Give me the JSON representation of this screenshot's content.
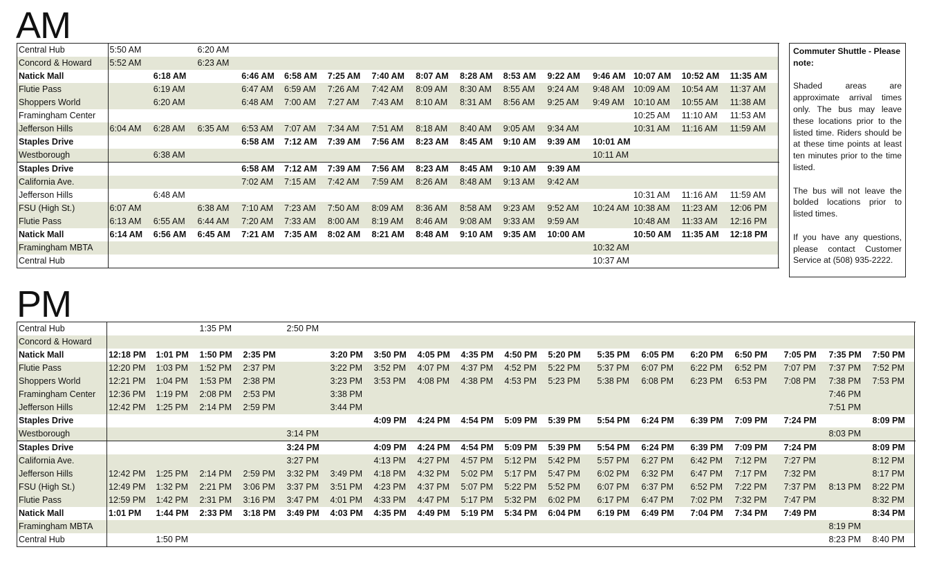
{
  "am": {
    "title": "AM",
    "rows": [
      {
        "stop": "Central Hub",
        "style": "plain",
        "times": [
          "5:50 AM",
          "",
          "6:20 AM",
          "",
          "",
          "",
          "",
          "",
          "",
          "",
          "",
          "",
          "",
          "",
          "",
          ""
        ]
      },
      {
        "stop": "Concord & Howard",
        "style": "shaded",
        "times": [
          "5:52 AM",
          "",
          "6:23 AM",
          "",
          "",
          "",
          "",
          "",
          "",
          "",
          "",
          "",
          "",
          "",
          "",
          ""
        ]
      },
      {
        "stop": "Natick Mall",
        "style": "bold",
        "times": [
          "",
          "6:18 AM",
          "",
          "6:46 AM",
          "6:58 AM",
          "7:25 AM",
          "7:40 AM",
          "8:07 AM",
          "8:28 AM",
          "8:53 AM",
          "9:22 AM",
          "9:46 AM",
          "10:07 AM",
          "10:52 AM",
          "11:35 AM",
          ""
        ]
      },
      {
        "stop": "Flutie Pass",
        "style": "shaded",
        "times": [
          "",
          "6:19 AM",
          "",
          "6:47 AM",
          "6:59 AM",
          "7:26 AM",
          "7:42 AM",
          "8:09 AM",
          "8:30 AM",
          "8:55 AM",
          "9:24 AM",
          "9:48 AM",
          "10:09 AM",
          "10:54 AM",
          "11:37 AM",
          ""
        ]
      },
      {
        "stop": "Shoppers World",
        "style": "shaded",
        "times": [
          "",
          "6:20 AM",
          "",
          "6:48 AM",
          "7:00 AM",
          "7:27 AM",
          "7:43 AM",
          "8:10 AM",
          "8:31 AM",
          "8:56 AM",
          "9:25 AM",
          "9:49 AM",
          "10:10 AM",
          "10:55 AM",
          "11:38 AM",
          ""
        ]
      },
      {
        "stop": "Framingham Center",
        "style": "plain",
        "times": [
          "",
          "",
          "",
          "",
          "",
          "",
          "",
          "",
          "",
          "",
          "",
          "",
          "10:25 AM",
          "11:10 AM",
          "11:53 AM",
          ""
        ]
      },
      {
        "stop": "Jefferson Hills",
        "style": "shaded",
        "times": [
          "6:04 AM",
          "6:28 AM",
          "6:35 AM",
          "6:53 AM",
          "7:07 AM",
          "7:34 AM",
          "7:51 AM",
          "8:18 AM",
          "8:40 AM",
          "9:05 AM",
          "9:34 AM",
          "",
          "10:31 AM",
          "11:16 AM",
          "11:59 AM",
          ""
        ]
      },
      {
        "stop": "Staples Drive",
        "style": "bold",
        "times": [
          "",
          "",
          "",
          "6:58 AM",
          "7:12 AM",
          "7:39 AM",
          "7:56 AM",
          "8:23 AM",
          "8:45 AM",
          "9:10 AM",
          "9:39 AM",
          "10:01 AM",
          "",
          "",
          "",
          ""
        ]
      },
      {
        "stop": "Westborough",
        "style": "shaded",
        "times": [
          "",
          "6:38 AM",
          "",
          "",
          "",
          "",
          "",
          "",
          "",
          "",
          "",
          "10:11 AM",
          "",
          "",
          "",
          ""
        ]
      },
      {
        "stop": "Staples Drive",
        "style": "bold sep",
        "times": [
          "",
          "",
          "",
          "6:58 AM",
          "7:12 AM",
          "7:39 AM",
          "7:56 AM",
          "8:23 AM",
          "8:45 AM",
          "9:10 AM",
          "9:39 AM",
          "",
          "",
          "",
          "",
          ""
        ]
      },
      {
        "stop": "California Ave.",
        "style": "shaded",
        "times": [
          "",
          "",
          "",
          "7:02 AM",
          "7:15 AM",
          "7:42 AM",
          "7:59 AM",
          "8:26 AM",
          "8:48 AM",
          "9:13 AM",
          "9:42 AM",
          "",
          "",
          "",
          "",
          ""
        ]
      },
      {
        "stop": "Jefferson Hills",
        "style": "plain",
        "times": [
          "",
          "6:48 AM",
          "",
          "",
          "",
          "",
          "",
          "",
          "",
          "",
          "",
          "",
          "10:31 AM",
          "11:16 AM",
          "11:59 AM",
          ""
        ]
      },
      {
        "stop": "FSU (High St.)",
        "style": "shaded",
        "times": [
          "6:07 AM",
          "",
          "6:38 AM",
          "7:10 AM",
          "7:23 AM",
          "7:50 AM",
          "8:09 AM",
          "8:36 AM",
          "8:58 AM",
          "9:23 AM",
          "9:52 AM",
          "10:24 AM",
          "10:38 AM",
          "11:23 AM",
          "12:06 PM",
          ""
        ]
      },
      {
        "stop": "Flutie Pass",
        "style": "shaded",
        "times": [
          "6:13 AM",
          "6:55 AM",
          "6:44 AM",
          "7:20 AM",
          "7:33 AM",
          "8:00 AM",
          "8:19 AM",
          "8:46 AM",
          "9:08 AM",
          "9:33 AM",
          "9:59 AM",
          "",
          "10:48 AM",
          "11:33 AM",
          "12:16 PM",
          ""
        ]
      },
      {
        "stop": "Natick Mall",
        "style": "bold",
        "times": [
          "6:14 AM",
          "6:56 AM",
          "6:45 AM",
          "7:21 AM",
          "7:35 AM",
          "8:02 AM",
          "8:21 AM",
          "8:48 AM",
          "9:10 AM",
          "9:35 AM",
          "10:00 AM",
          "",
          "10:50 AM",
          "11:35 AM",
          "12:18 PM",
          ""
        ]
      },
      {
        "stop": "Framingham MBTA",
        "style": "shaded",
        "times": [
          "",
          "",
          "",
          "",
          "",
          "",
          "",
          "",
          "",
          "",
          "",
          "10:32 AM",
          "",
          "",
          "",
          ""
        ]
      },
      {
        "stop": "Central Hub",
        "style": "plain",
        "times": [
          "",
          "",
          "",
          "",
          "",
          "",
          "",
          "",
          "",
          "",
          "",
          "10:37 AM",
          "",
          "",
          "",
          ""
        ]
      }
    ]
  },
  "pm": {
    "title": "PM",
    "rows": [
      {
        "stop": "Central Hub",
        "style": "plain",
        "times": [
          "",
          "",
          "1:35 PM",
          "",
          "2:50 PM",
          "",
          "",
          "",
          "",
          "",
          "",
          "",
          "",
          "",
          "",
          "",
          "",
          "",
          ""
        ]
      },
      {
        "stop": "Concord & Howard",
        "style": "shaded",
        "times": [
          "",
          "",
          "",
          "",
          "",
          "",
          "",
          "",
          "",
          "",
          "",
          "",
          "",
          "",
          "",
          "",
          "",
          "",
          ""
        ]
      },
      {
        "stop": "Natick Mall",
        "style": "bold",
        "times": [
          "12:18 PM",
          "1:01 PM",
          "1:50 PM",
          "2:35 PM",
          "",
          "3:20 PM",
          "3:50 PM",
          "4:05 PM",
          "4:35 PM",
          "4:50 PM",
          "5:20 PM",
          "5:35 PM",
          "6:05 PM",
          "6:20 PM",
          "6:50 PM",
          "7:05 PM",
          "7:35 PM",
          "7:50 PM",
          ""
        ]
      },
      {
        "stop": "Flutie Pass",
        "style": "shaded",
        "times": [
          "12:20 PM",
          "1:03 PM",
          "1:52 PM",
          "2:37 PM",
          "",
          "3:22 PM",
          "3:52 PM",
          "4:07 PM",
          "4:37 PM",
          "4:52 PM",
          "5:22 PM",
          "5:37 PM",
          "6:07 PM",
          "6:22 PM",
          "6:52 PM",
          "7:07 PM",
          "7:37 PM",
          "7:52 PM",
          ""
        ]
      },
      {
        "stop": "Shoppers World",
        "style": "shaded",
        "times": [
          "12:21 PM",
          "1:04 PM",
          "1:53 PM",
          "2:38 PM",
          "",
          "3:23 PM",
          "3:53 PM",
          "4:08 PM",
          "4:38 PM",
          "4:53 PM",
          "5:23 PM",
          "5:38 PM",
          "6:08 PM",
          "6:23 PM",
          "6:53 PM",
          "7:08 PM",
          "7:38 PM",
          "7:53 PM",
          ""
        ]
      },
      {
        "stop": "Framingham Center",
        "style": "shaded",
        "times": [
          "12:36 PM",
          "1:19 PM",
          "2:08 PM",
          "2:53 PM",
          "",
          "3:38 PM",
          "",
          "",
          "",
          "",
          "",
          "",
          "",
          "",
          "",
          "",
          "7:46 PM",
          "",
          ""
        ]
      },
      {
        "stop": "Jefferson Hills",
        "style": "shaded",
        "times": [
          "12:42 PM",
          "1:25 PM",
          "2:14 PM",
          "2:59 PM",
          "",
          "3:44 PM",
          "",
          "",
          "",
          "",
          "",
          "",
          "",
          "",
          "",
          "",
          "7:51 PM",
          "",
          ""
        ]
      },
      {
        "stop": "Staples Drive",
        "style": "bold",
        "times": [
          "",
          "",
          "",
          "",
          "",
          "",
          "4:09 PM",
          "4:24 PM",
          "4:54 PM",
          "5:09 PM",
          "5:39 PM",
          "5:54 PM",
          "6:24 PM",
          "6:39 PM",
          "7:09 PM",
          "7:24 PM",
          "",
          "8:09 PM",
          ""
        ]
      },
      {
        "stop": "Westborough",
        "style": "shaded",
        "times": [
          "",
          "",
          "",
          "",
          "3:14 PM",
          "",
          "",
          "",
          "",
          "",
          "",
          "",
          "",
          "",
          "",
          "",
          "8:03 PM",
          "",
          ""
        ]
      },
      {
        "stop": "Staples Drive",
        "style": "bold sep",
        "times": [
          "",
          "",
          "",
          "",
          "3:24 PM",
          "",
          "4:09 PM",
          "4:24 PM",
          "4:54 PM",
          "5:09 PM",
          "5:39 PM",
          "5:54 PM",
          "6:24 PM",
          "6:39 PM",
          "7:09 PM",
          "7:24 PM",
          "",
          "8:09 PM",
          ""
        ]
      },
      {
        "stop": "California Ave.",
        "style": "shaded",
        "times": [
          "",
          "",
          "",
          "",
          "3:27 PM",
          "",
          "4:13 PM",
          "4:27 PM",
          "4:57 PM",
          "5:12 PM",
          "5:42 PM",
          "5:57 PM",
          "6:27 PM",
          "6:42 PM",
          "7:12 PM",
          "7:27 PM",
          "",
          "8:12 PM",
          ""
        ]
      },
      {
        "stop": "Jefferson Hills",
        "style": "shaded",
        "times": [
          "12:42 PM",
          "1:25 PM",
          "2:14 PM",
          "2:59 PM",
          "3:32 PM",
          "3:49 PM",
          "4:18 PM",
          "4:32 PM",
          "5:02 PM",
          "5:17 PM",
          "5:47 PM",
          "6:02 PM",
          "6:32 PM",
          "6:47 PM",
          "7:17 PM",
          "7:32 PM",
          "",
          "8:17 PM",
          ""
        ]
      },
      {
        "stop": "FSU (High St.)",
        "style": "shaded",
        "times": [
          "12:49 PM",
          "1:32 PM",
          "2:21 PM",
          "3:06 PM",
          "3:37 PM",
          "3:51 PM",
          "4:23 PM",
          "4:37 PM",
          "5:07 PM",
          "5:22 PM",
          "5:52 PM",
          "6:07 PM",
          "6:37 PM",
          "6:52 PM",
          "7:22 PM",
          "7:37 PM",
          "8:13 PM",
          "8:22 PM",
          ""
        ]
      },
      {
        "stop": "Flutie Pass",
        "style": "shaded",
        "times": [
          "12:59 PM",
          "1:42 PM",
          "2:31 PM",
          "3:16 PM",
          "3:47 PM",
          "4:01 PM",
          "4:33 PM",
          "4:47 PM",
          "5:17 PM",
          "5:32 PM",
          "6:02 PM",
          "6:17 PM",
          "6:47 PM",
          "7:02 PM",
          "7:32 PM",
          "7:47 PM",
          "",
          "8:32 PM",
          ""
        ]
      },
      {
        "stop": "Natick Mall",
        "style": "bold",
        "times": [
          "1:01 PM",
          "1:44 PM",
          "2:33 PM",
          "3:18 PM",
          "3:49 PM",
          "4:03 PM",
          "4:35 PM",
          "4:49 PM",
          "5:19 PM",
          "5:34 PM",
          "6:04 PM",
          "6:19 PM",
          "6:49 PM",
          "7:04 PM",
          "7:34 PM",
          "7:49 PM",
          "",
          "8:34 PM",
          ""
        ]
      },
      {
        "stop": "Framingham MBTA",
        "style": "shaded",
        "times": [
          "",
          "",
          "",
          "",
          "",
          "",
          "",
          "",
          "",
          "",
          "",
          "",
          "",
          "",
          "",
          "",
          "8:19 PM",
          "",
          ""
        ]
      },
      {
        "stop": "Central Hub",
        "style": "plain",
        "times": [
          "",
          "1:50 PM",
          "",
          "",
          "",
          "",
          "",
          "",
          "",
          "",
          "",
          "",
          "",
          "",
          "",
          "",
          "8:23 PM",
          "8:40 PM",
          ""
        ]
      }
    ]
  },
  "note": {
    "title": "Commuter Shuttle - Please note:",
    "paragraphs": [
      "Shaded areas are approximate arrival times only. The bus may leave these locations prior to the listed time. Riders should be at these time points at least ten minutes prior to the time listed.",
      "The bus will not leave the bolded locations prior to listed times.",
      "If you have any questions, please contact Customer Service at (508) 935-2222."
    ]
  },
  "colors": {
    "shade": "#e4e6d6",
    "border": "#222222",
    "text": "#111111"
  }
}
